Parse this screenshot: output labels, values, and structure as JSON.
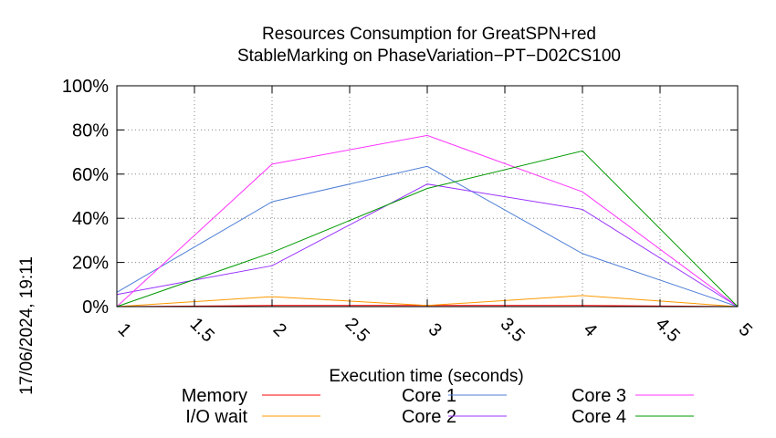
{
  "chart_data": {
    "type": "line",
    "title_line1": "Resources Consumption for GreatSPN+red",
    "title_line2": "StableMarking on PhaseVariation−PT−D02CS100",
    "xlabel": "Execution time (seconds)",
    "ylabel": "",
    "side_label": "17/06/2024, 19:11",
    "xlim": [
      1,
      5
    ],
    "ylim": [
      0,
      100
    ],
    "x_ticks": [
      "1",
      "1.5",
      "2",
      "2.5",
      "3",
      "3.5",
      "4",
      "4.5",
      "5"
    ],
    "y_ticks": [
      "0%",
      "20%",
      "40%",
      "60%",
      "80%",
      "100%"
    ],
    "grid": true,
    "x": [
      1,
      2,
      3,
      4,
      5
    ],
    "series": [
      {
        "name": "Memory",
        "color": "#ff0000",
        "values": [
          0,
          0.5,
          0.5,
          0.5,
          0
        ]
      },
      {
        "name": "I/O wait",
        "color": "#ff9900",
        "values": [
          0,
          4.5,
          0.5,
          5,
          0
        ]
      },
      {
        "name": "Core 1",
        "color": "#4f7ed6",
        "values": [
          6.5,
          47.5,
          63.5,
          24,
          0
        ]
      },
      {
        "name": "Core 2",
        "color": "#9933ff",
        "values": [
          5.5,
          18.5,
          55.5,
          44,
          0
        ]
      },
      {
        "name": "Core 3",
        "color": "#ff33ff",
        "values": [
          0,
          64.5,
          77.5,
          52,
          0
        ]
      },
      {
        "name": "Core 4",
        "color": "#009900",
        "values": [
          0,
          24.5,
          53.5,
          70.5,
          0
        ]
      }
    ]
  }
}
